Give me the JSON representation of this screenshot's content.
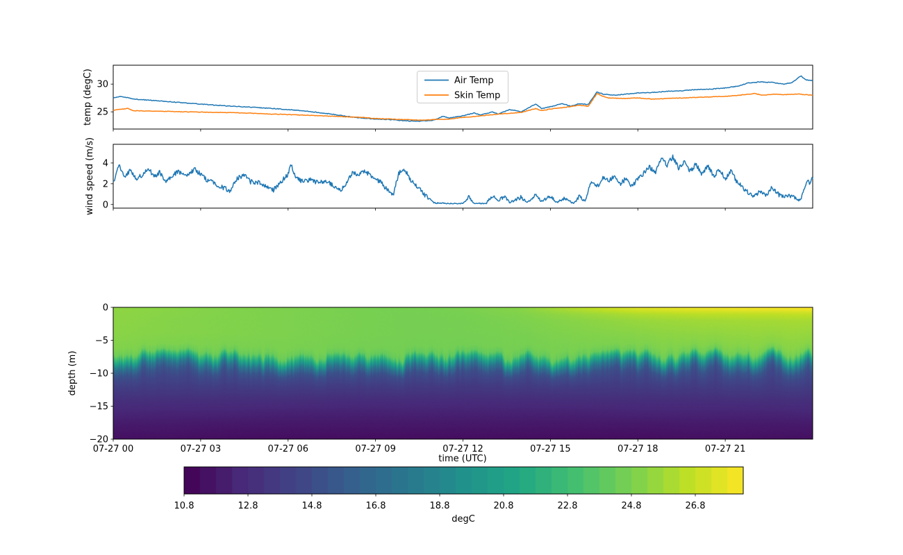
{
  "colors": {
    "air_temp": "#1f77b4",
    "skin_temp": "#ff7f0e",
    "wind_line": "#1f77b4",
    "axis": "#000000",
    "legend_border": "#cccccc"
  },
  "chart_data": [
    {
      "id": "temp",
      "type": "line",
      "ylabel": "temp (degC)",
      "xlim": [
        0,
        24
      ],
      "ylim": [
        21.9,
        33.4
      ],
      "yticks": [
        {
          "value": 25,
          "label": "25"
        },
        {
          "value": 30,
          "label": "30"
        }
      ],
      "legend": {
        "position": "upper center",
        "entries": [
          {
            "label": "Air Temp",
            "color": "#1f77b4"
          },
          {
            "label": "Skin Temp",
            "color": "#ff7f0e"
          }
        ]
      },
      "series": [
        {
          "name": "Air Temp",
          "color": "#1f77b4",
          "jitter": 0.06,
          "x": [
            0,
            0.25,
            0.7,
            1.5,
            2.5,
            3.5,
            4.5,
            5.5,
            6.5,
            7.5,
            8,
            8.5,
            9,
            9.5,
            10,
            10.5,
            11,
            11.3,
            11.5,
            12,
            12.4,
            12.6,
            13,
            13.2,
            13.6,
            14,
            14.5,
            14.7,
            15,
            15.4,
            15.7,
            16,
            16.3,
            16.6,
            16.8,
            17.2,
            17.6,
            18,
            18.5,
            19,
            19.5,
            20,
            20.5,
            21,
            21.4,
            21.8,
            22.2,
            22.6,
            23,
            23.3,
            23.6,
            23.75,
            24
          ],
          "y": [
            27.5,
            27.8,
            27.3,
            27.0,
            26.6,
            26.2,
            25.9,
            25.6,
            25.2,
            24.6,
            24.2,
            23.9,
            23.7,
            23.6,
            23.4,
            23.3,
            23.5,
            24.2,
            23.9,
            24.3,
            24.8,
            24.4,
            25.0,
            24.6,
            25.4,
            25.0,
            26.4,
            25.6,
            25.9,
            26.5,
            26.0,
            26.5,
            26.3,
            28.6,
            28.2,
            28.0,
            28.2,
            28.4,
            28.5,
            28.7,
            28.8,
            29.0,
            29.1,
            29.3,
            29.6,
            30.2,
            30.4,
            30.3,
            30.0,
            30.3,
            31.5,
            30.8,
            30.6
          ]
        },
        {
          "name": "Skin Temp",
          "color": "#ff7f0e",
          "jitter": 0.05,
          "x": [
            0,
            0.5,
            0.7,
            1.5,
            2.5,
            3.5,
            4.5,
            5.5,
            6.5,
            7.5,
            8.5,
            9,
            9.5,
            10,
            10.5,
            11,
            11.5,
            12,
            12.5,
            13,
            13.5,
            14,
            14.5,
            14.7,
            15,
            15.5,
            16,
            16.3,
            16.6,
            16.8,
            17,
            17.5,
            18,
            18.5,
            19,
            19.5,
            20,
            20.5,
            21,
            21.5,
            22,
            22.3,
            22.7,
            23,
            23.5,
            24
          ],
          "y": [
            25.3,
            25.6,
            25.2,
            25.1,
            25.0,
            24.9,
            24.8,
            24.6,
            24.4,
            24.2,
            24.0,
            23.8,
            23.7,
            23.6,
            23.5,
            23.6,
            23.7,
            24.0,
            24.2,
            24.5,
            24.7,
            24.9,
            25.6,
            25.2,
            25.5,
            25.8,
            26.2,
            26.0,
            28.3,
            27.8,
            27.5,
            27.4,
            27.5,
            27.3,
            27.4,
            27.5,
            27.6,
            27.7,
            27.8,
            28.0,
            28.3,
            28.0,
            28.2,
            28.1,
            28.2,
            28.0
          ]
        }
      ]
    },
    {
      "id": "wind",
      "type": "line",
      "ylabel": "wind speed (m/s)",
      "xlim": [
        0,
        24
      ],
      "ylim": [
        -0.35,
        5.8
      ],
      "yticks": [
        {
          "value": 0,
          "label": "0"
        },
        {
          "value": 2,
          "label": "2"
        },
        {
          "value": 4,
          "label": "4"
        }
      ],
      "series": [
        {
          "name": "wind speed",
          "color": "#1f77b4",
          "jitter": 0.22,
          "x": [
            0,
            0.2,
            0.4,
            0.6,
            0.8,
            1,
            1.2,
            1.4,
            1.6,
            1.8,
            2,
            2.2,
            2.5,
            2.8,
            3,
            3.2,
            3.5,
            3.8,
            4,
            4.2,
            4.5,
            4.7,
            5,
            5.2,
            5.5,
            5.8,
            6,
            6.1,
            6.3,
            6.5,
            6.8,
            7,
            7.3,
            7.5,
            7.8,
            8,
            8.2,
            8.4,
            8.6,
            8.8,
            9,
            9.2,
            9.4,
            9.6,
            9.8,
            10,
            10.2,
            10.4,
            10.6,
            10.8,
            11,
            11.5,
            12,
            12.2,
            12.4,
            12.8,
            13,
            13.2,
            13.4,
            13.6,
            14,
            14.2,
            14.5,
            14.7,
            15,
            15.2,
            15.5,
            15.8,
            16,
            16.2,
            16.4,
            16.6,
            16.8,
            17,
            17.2,
            17.4,
            17.6,
            17.8,
            18,
            18.2,
            18.4,
            18.6,
            18.8,
            19,
            19.2,
            19.4,
            19.6,
            19.8,
            20,
            20.2,
            20.4,
            20.6,
            20.8,
            21,
            21.2,
            21.4,
            21.6,
            21.8,
            22,
            22.2,
            22.4,
            22.6,
            22.8,
            23,
            23.2,
            23.4,
            23.6,
            23.8,
            23.9,
            24
          ],
          "y": [
            2.1,
            3.7,
            2.6,
            3.3,
            2.4,
            2.9,
            3.5,
            2.7,
            3.1,
            2.3,
            2.6,
            3.2,
            2.8,
            3.4,
            2.9,
            2.4,
            2.0,
            1.6,
            1.3,
            2.4,
            2.9,
            2.2,
            2.1,
            1.8,
            1.4,
            2.3,
            2.9,
            3.8,
            2.5,
            2.2,
            2.4,
            2.1,
            2.3,
            1.9,
            1.3,
            2.1,
            3.1,
            2.8,
            3.2,
            2.9,
            2.5,
            2.1,
            1.4,
            0.9,
            3.0,
            3.4,
            2.3,
            1.8,
            1.2,
            0.6,
            0.15,
            0.1,
            0.1,
            0.7,
            0.1,
            0.1,
            0.9,
            0.3,
            0.8,
            0.2,
            0.7,
            0.2,
            0.9,
            0.3,
            0.8,
            0.2,
            0.6,
            0.1,
            0.8,
            0.3,
            2.3,
            1.7,
            2.6,
            2.2,
            2.8,
            2.0,
            2.5,
            1.8,
            2.4,
            3.0,
            3.6,
            3.1,
            4.4,
            3.8,
            4.6,
            3.5,
            4.2,
            3.2,
            3.9,
            2.9,
            3.8,
            2.7,
            3.4,
            2.5,
            3.2,
            2.2,
            1.6,
            1.1,
            0.8,
            1.3,
            0.9,
            1.6,
            1.0,
            0.7,
            0.9,
            0.6,
            0.4,
            2.4,
            1.9,
            2.6
          ]
        }
      ]
    },
    {
      "id": "depth_temp",
      "type": "heatmap",
      "ylabel": "depth (m)",
      "xlabel": "time (UTC)",
      "xlim": [
        0,
        24
      ],
      "ylim": [
        -20,
        0
      ],
      "colormap": "viridis",
      "vmin": 10.8,
      "vmax": 28.3,
      "yticks": [
        {
          "value": 0,
          "label": "0"
        },
        {
          "value": -5,
          "label": "−5"
        },
        {
          "value": -10,
          "label": "−10"
        },
        {
          "value": -15,
          "label": "−15"
        },
        {
          "value": -20,
          "label": "−20"
        }
      ],
      "xticks": [
        {
          "value": 0,
          "label": "07-27 00"
        },
        {
          "value": 3,
          "label": "07-27 03"
        },
        {
          "value": 6,
          "label": "07-27 06"
        },
        {
          "value": 9,
          "label": "07-27 09"
        },
        {
          "value": 12,
          "label": "07-27 12"
        },
        {
          "value": 15,
          "label": "07-27 15"
        },
        {
          "value": 18,
          "label": "07-27 18"
        },
        {
          "value": 21,
          "label": "07-27 21"
        }
      ],
      "grid": {
        "times": [
          0,
          2,
          4,
          6,
          8,
          10,
          12,
          14,
          16,
          18,
          20,
          22,
          24
        ],
        "depths": [
          0,
          -1,
          -2,
          -4,
          -6,
          -7,
          -8,
          -9,
          -10,
          -11,
          -12,
          -14,
          -16,
          -18,
          -20
        ],
        "values": [
          [
            25.4,
            25.2,
            25.0,
            24.9,
            24.8,
            24.7,
            24.8,
            25.2,
            26.5,
            27.6,
            28.0,
            28.2,
            28.3
          ],
          [
            25.3,
            25.15,
            25.0,
            24.9,
            24.8,
            24.7,
            24.75,
            25.0,
            25.6,
            26.2,
            26.5,
            26.6,
            26.7
          ],
          [
            25.3,
            25.1,
            25.0,
            24.9,
            24.8,
            24.7,
            24.7,
            24.9,
            25.2,
            25.6,
            25.8,
            25.9,
            26.0
          ],
          [
            25.2,
            25.1,
            25.0,
            24.9,
            24.8,
            24.7,
            24.7,
            24.8,
            25.0,
            25.2,
            25.4,
            25.5,
            25.6
          ],
          [
            25.0,
            24.9,
            24.8,
            24.8,
            24.7,
            24.6,
            24.6,
            24.7,
            24.8,
            24.9,
            25.0,
            25.1,
            25.2
          ],
          [
            24.4,
            24.3,
            24.2,
            24.2,
            24.1,
            24.1,
            24.0,
            24.1,
            24.2,
            24.3,
            24.4,
            24.5,
            24.6
          ],
          [
            21.6,
            21.4,
            21.3,
            21.1,
            21.0,
            20.9,
            20.9,
            21.0,
            21.1,
            21.3,
            21.4,
            21.6,
            21.7
          ],
          [
            17.9,
            17.7,
            17.6,
            17.5,
            17.4,
            17.3,
            17.3,
            17.4,
            17.5,
            17.6,
            17.7,
            17.9,
            18.0
          ],
          [
            15.6,
            15.5,
            15.4,
            15.3,
            15.2,
            15.1,
            15.1,
            15.2,
            15.2,
            15.3,
            15.4,
            15.5,
            15.6
          ],
          [
            14.6,
            14.5,
            14.5,
            14.4,
            14.4,
            14.3,
            14.3,
            14.3,
            14.4,
            14.4,
            14.5,
            14.5,
            14.6
          ],
          [
            14.0,
            14.0,
            13.9,
            13.9,
            13.8,
            13.8,
            13.7,
            13.8,
            13.8,
            13.9,
            13.9,
            14.0,
            14.0
          ],
          [
            13.1,
            13.1,
            13.0,
            13.0,
            12.9,
            12.9,
            12.9,
            12.9,
            13.0,
            13.0,
            13.0,
            13.1,
            13.1
          ],
          [
            12.5,
            12.4,
            12.4,
            12.3,
            12.3,
            12.3,
            12.3,
            12.3,
            12.3,
            12.4,
            12.4,
            12.4,
            12.5
          ],
          [
            11.9,
            11.9,
            11.8,
            11.8,
            11.8,
            11.8,
            11.8,
            11.8,
            11.8,
            11.8,
            11.9,
            11.9,
            11.9
          ],
          [
            11.5,
            11.5,
            11.4,
            11.4,
            11.4,
            11.4,
            11.4,
            11.4,
            11.4,
            11.4,
            11.5,
            11.5,
            11.5
          ]
        ]
      },
      "colorbar": {
        "label": "degC",
        "segments": 35,
        "ticks": [
          {
            "value": 10.8,
            "label": "10.8"
          },
          {
            "value": 12.8,
            "label": "12.8"
          },
          {
            "value": 14.8,
            "label": "14.8"
          },
          {
            "value": 16.8,
            "label": "16.8"
          },
          {
            "value": 18.8,
            "label": "18.8"
          },
          {
            "value": 20.8,
            "label": "20.8"
          },
          {
            "value": 22.8,
            "label": "22.8"
          },
          {
            "value": 24.8,
            "label": "24.8"
          },
          {
            "value": 26.8,
            "label": "26.8"
          }
        ]
      }
    }
  ]
}
